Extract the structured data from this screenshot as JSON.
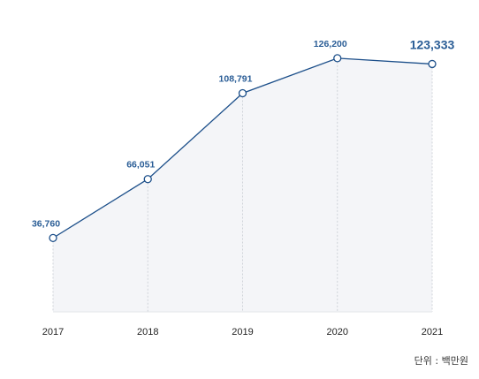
{
  "chart_data": {
    "type": "area",
    "categories": [
      "2017",
      "2018",
      "2019",
      "2020",
      "2021"
    ],
    "values": [
      36760,
      66051,
      108791,
      126200,
      123333
    ],
    "value_labels": [
      "36,760",
      "66,051",
      "108,791",
      "126,200",
      "123,333"
    ],
    "highlight_index": 4,
    "ylim": [
      0,
      140000
    ],
    "grid": false,
    "colors": {
      "line": "#1c4f8a",
      "label": "#2a5d96",
      "area": "#f4f5f8",
      "guide": "#cfd3d9",
      "axis_text": "#222222"
    }
  },
  "unit_note": {
    "label": "단위",
    "separator": ":",
    "value": "백만원"
  }
}
